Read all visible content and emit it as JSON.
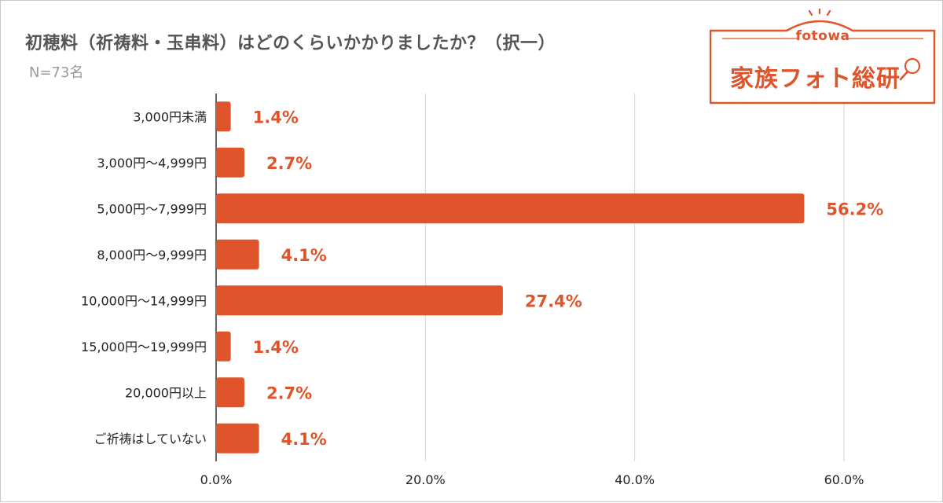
{
  "title": "初穂料（祈祷料・玉串料）はどのくらいかかりましたか？（択一）",
  "subtitle": "N=73名",
  "logo": {
    "wordmark": "fotowa",
    "text": "家族フォト総研",
    "icon": "magnifier-icon"
  },
  "colors": {
    "bar": "#e0542b",
    "label": "#e0542b",
    "grid": "#d4d4d4",
    "axis": "#333333",
    "text": "#222222"
  },
  "chart_data": {
    "type": "bar",
    "orientation": "horizontal",
    "title": "初穂料（祈祷料・玉串料）はどのくらいかかりましたか？（択一）",
    "subtitle": "N=73名",
    "categories": [
      "3,000円未満",
      "3,000円～4,999円",
      "5,000円～7,999円",
      "8,000円～9,999円",
      "10,000円～14,999円",
      "15,000円～19,999円",
      "20,000円以上",
      "ご祈祷はしていない"
    ],
    "values": [
      1.4,
      2.7,
      56.2,
      4.1,
      27.4,
      1.4,
      2.7,
      4.1
    ],
    "value_labels": [
      "1.4%",
      "2.7%",
      "56.2%",
      "4.1%",
      "27.4%",
      "1.4%",
      "2.7%",
      "4.1%"
    ],
    "xlim": [
      0,
      60
    ],
    "x_ticks": [
      0,
      20,
      40,
      60
    ],
    "x_tick_labels": [
      "0.0%",
      "20.0%",
      "40.0%",
      "60.0%"
    ],
    "xlabel": "",
    "ylabel": "",
    "grid": "vertical",
    "legend": "none"
  }
}
